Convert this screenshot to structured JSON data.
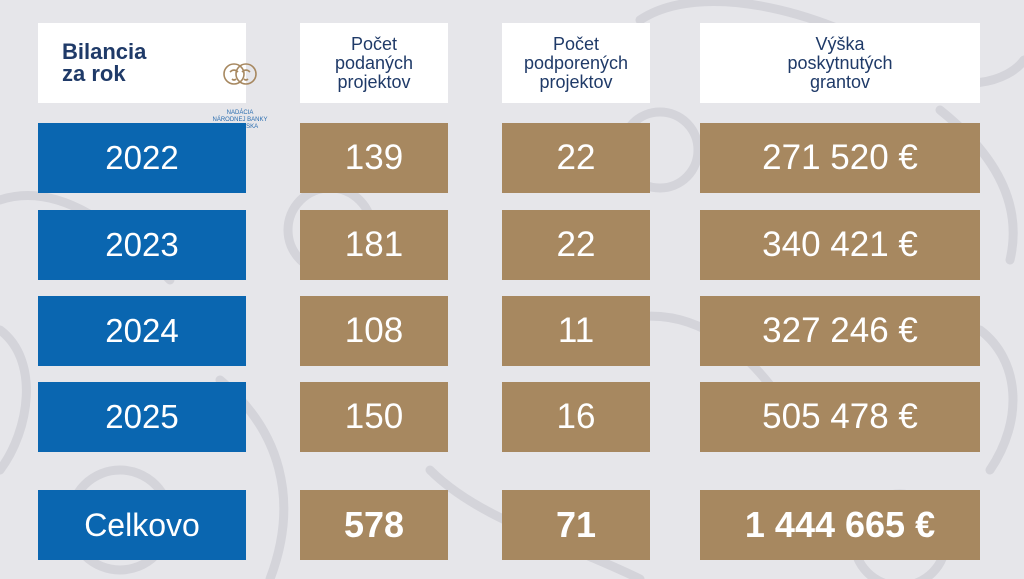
{
  "header": {
    "logo_title": "Bilancia\nza rok",
    "logo_icon": "foundation-faces-logo",
    "logo_sub": "NADÁCIA\nNÁRODNEJ BANKY\nSLOVENSKA",
    "col_submitted": "Počet\npodaných\nprojektov",
    "col_supported": "Počet\npodporených\nprojektov",
    "col_grants": "Výška\nposkytnutých\ngrantov"
  },
  "rows": [
    {
      "year": "2022",
      "submitted": "139",
      "supported": "22",
      "grants": "271 520 €"
    },
    {
      "year": "2023",
      "submitted": "181",
      "supported": "22",
      "grants": "340 421 €"
    },
    {
      "year": "2024",
      "submitted": "108",
      "supported": "11",
      "grants": "327 246 €"
    },
    {
      "year": "2025",
      "submitted": "150",
      "supported": "16",
      "grants": "505 478 €"
    }
  ],
  "total": {
    "label": "Celkovo",
    "submitted": "578",
    "supported": "71",
    "grants": "1 444 665 €"
  },
  "colors": {
    "year_bg": "#0a66b0",
    "value_bg": "#a78860",
    "header_text": "#1f3a68",
    "background": "#e6e6ea"
  }
}
